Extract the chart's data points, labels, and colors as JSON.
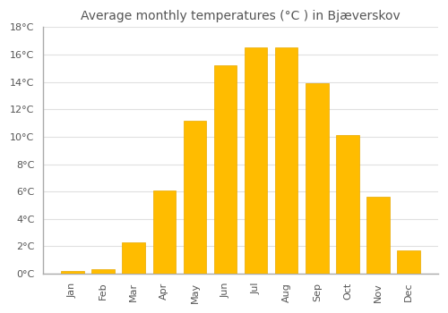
{
  "title": "Average monthly temperatures (°C ) in Bjæverskov",
  "months": [
    "Jan",
    "Feb",
    "Mar",
    "Apr",
    "May",
    "Jun",
    "Jul",
    "Aug",
    "Sep",
    "Oct",
    "Nov",
    "Dec"
  ],
  "values": [
    0.2,
    0.3,
    2.3,
    6.1,
    11.2,
    15.2,
    16.5,
    16.5,
    13.9,
    10.1,
    5.6,
    1.7
  ],
  "bar_color": "#FFBC00",
  "bar_edge_color": "#E8A800",
  "background_color": "#FFFFFF",
  "grid_color": "#E0E0E0",
  "text_color": "#555555",
  "spine_color": "#AAAAAA",
  "ylim": [
    0,
    18
  ],
  "ytick_step": 2,
  "title_fontsize": 10,
  "tick_fontsize": 8
}
